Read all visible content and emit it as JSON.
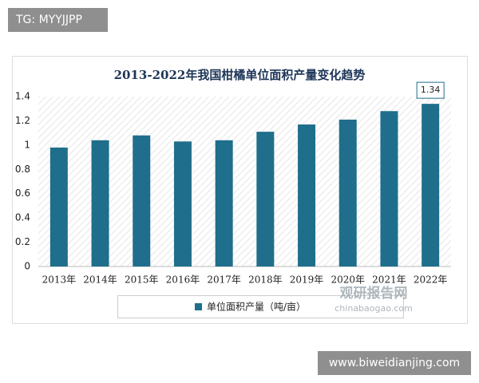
{
  "watermarks": {
    "top_left": "TG: MYYJJPP",
    "bottom_right": "www.biweidianjing.com",
    "logo_cn": "观研报告网",
    "logo_en": "chinabaogao.com"
  },
  "chart_data": {
    "type": "bar",
    "title": "2013-2022年我国柑橘单位面积产量变化趋势",
    "categories": [
      "2013年",
      "2014年",
      "2015年",
      "2016年",
      "2017年",
      "2018年",
      "2019年",
      "2020年",
      "2021年",
      "2022年"
    ],
    "series": [
      {
        "name": "单位面积产量（吨/亩）",
        "color": "#1f6e8c",
        "values": [
          0.98,
          1.04,
          1.08,
          1.03,
          1.04,
          1.11,
          1.17,
          1.21,
          1.28,
          1.34
        ],
        "value_labels": [
          null,
          null,
          null,
          null,
          null,
          null,
          null,
          null,
          null,
          "1.34"
        ]
      }
    ],
    "ylim": [
      0,
      1.4
    ],
    "yticks": [
      0,
      0.2,
      0.4,
      0.6,
      0.8,
      1,
      1.2,
      1.4
    ],
    "grid": false
  }
}
